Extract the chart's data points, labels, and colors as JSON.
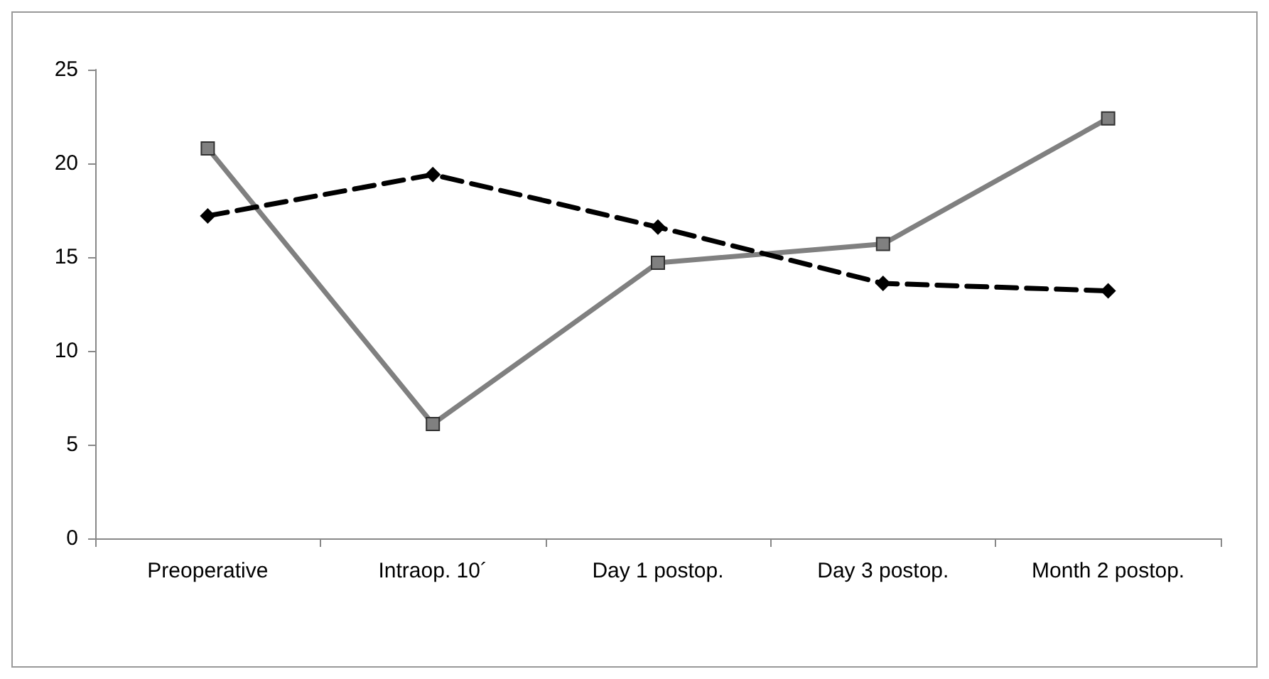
{
  "chart_data": {
    "type": "line",
    "categories": [
      "Preoperative",
      "Intraop. 10´",
      "Day 1 postop.",
      "Day 3 postop.",
      "Month 2 postop."
    ],
    "series": [
      {
        "color": "#808080",
        "values": [
          20.8,
          6.1,
          14.7,
          15.7,
          22.4
        ],
        "marker": "square",
        "line_style": "solid"
      },
      {
        "color": "#000000",
        "values": [
          17.2,
          19.4,
          16.6,
          13.6,
          13.2
        ],
        "marker": "diamond",
        "line_style": "dashed"
      }
    ],
    "ylim": [
      0,
      25
    ],
    "yticks": [
      0,
      5,
      10,
      15,
      20,
      25
    ]
  }
}
